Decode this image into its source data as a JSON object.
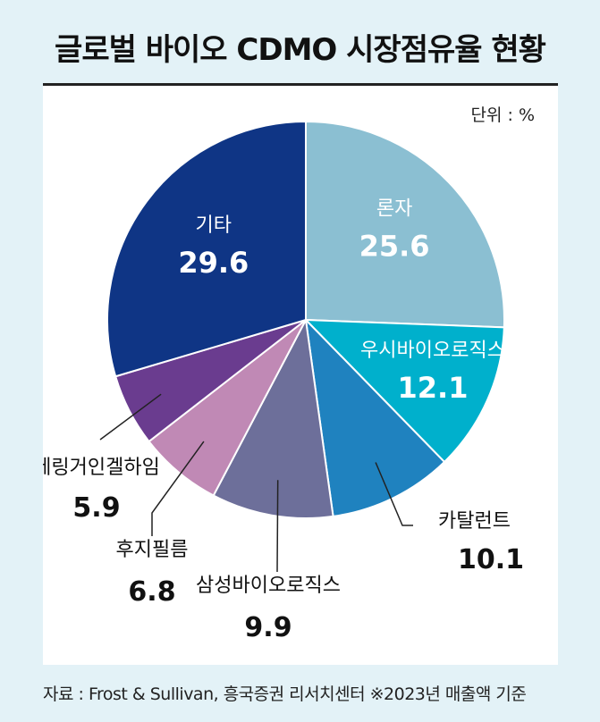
{
  "title": "글로벌 바이오 CDMO 시장점유율 현황",
  "unit_label": "단위 : %",
  "source": "자료 : Frost & Sullivan, 흥국증권 리서치센터  ※2023년 매출액 기준",
  "chart_data": {
    "type": "pie",
    "title": "글로벌 바이오 CDMO 시장점유율 현황",
    "unit": "%",
    "slices": [
      {
        "label": "론자",
        "value": 25.6,
        "color": "#8bbfd2",
        "display": "25.6"
      },
      {
        "label": "우시바이오로직스",
        "value": 12.1,
        "color": "#00b0cc",
        "display": "12.1"
      },
      {
        "label": "카탈런트",
        "value": 10.1,
        "color": "#1f82bf",
        "display": "10.1"
      },
      {
        "label": "삼성바이오로직스",
        "value": 9.9,
        "color": "#6d6f9a",
        "display": "9.9"
      },
      {
        "label": "후지필름",
        "value": 6.8,
        "color": "#c089b5",
        "display": "6.8"
      },
      {
        "label": "베링거인겔하임",
        "value": 5.9,
        "color": "#6a3c8f",
        "display": "5.9"
      },
      {
        "label": "기타",
        "value": 29.6,
        "color": "#0f3585",
        "display": "29.6"
      }
    ]
  }
}
